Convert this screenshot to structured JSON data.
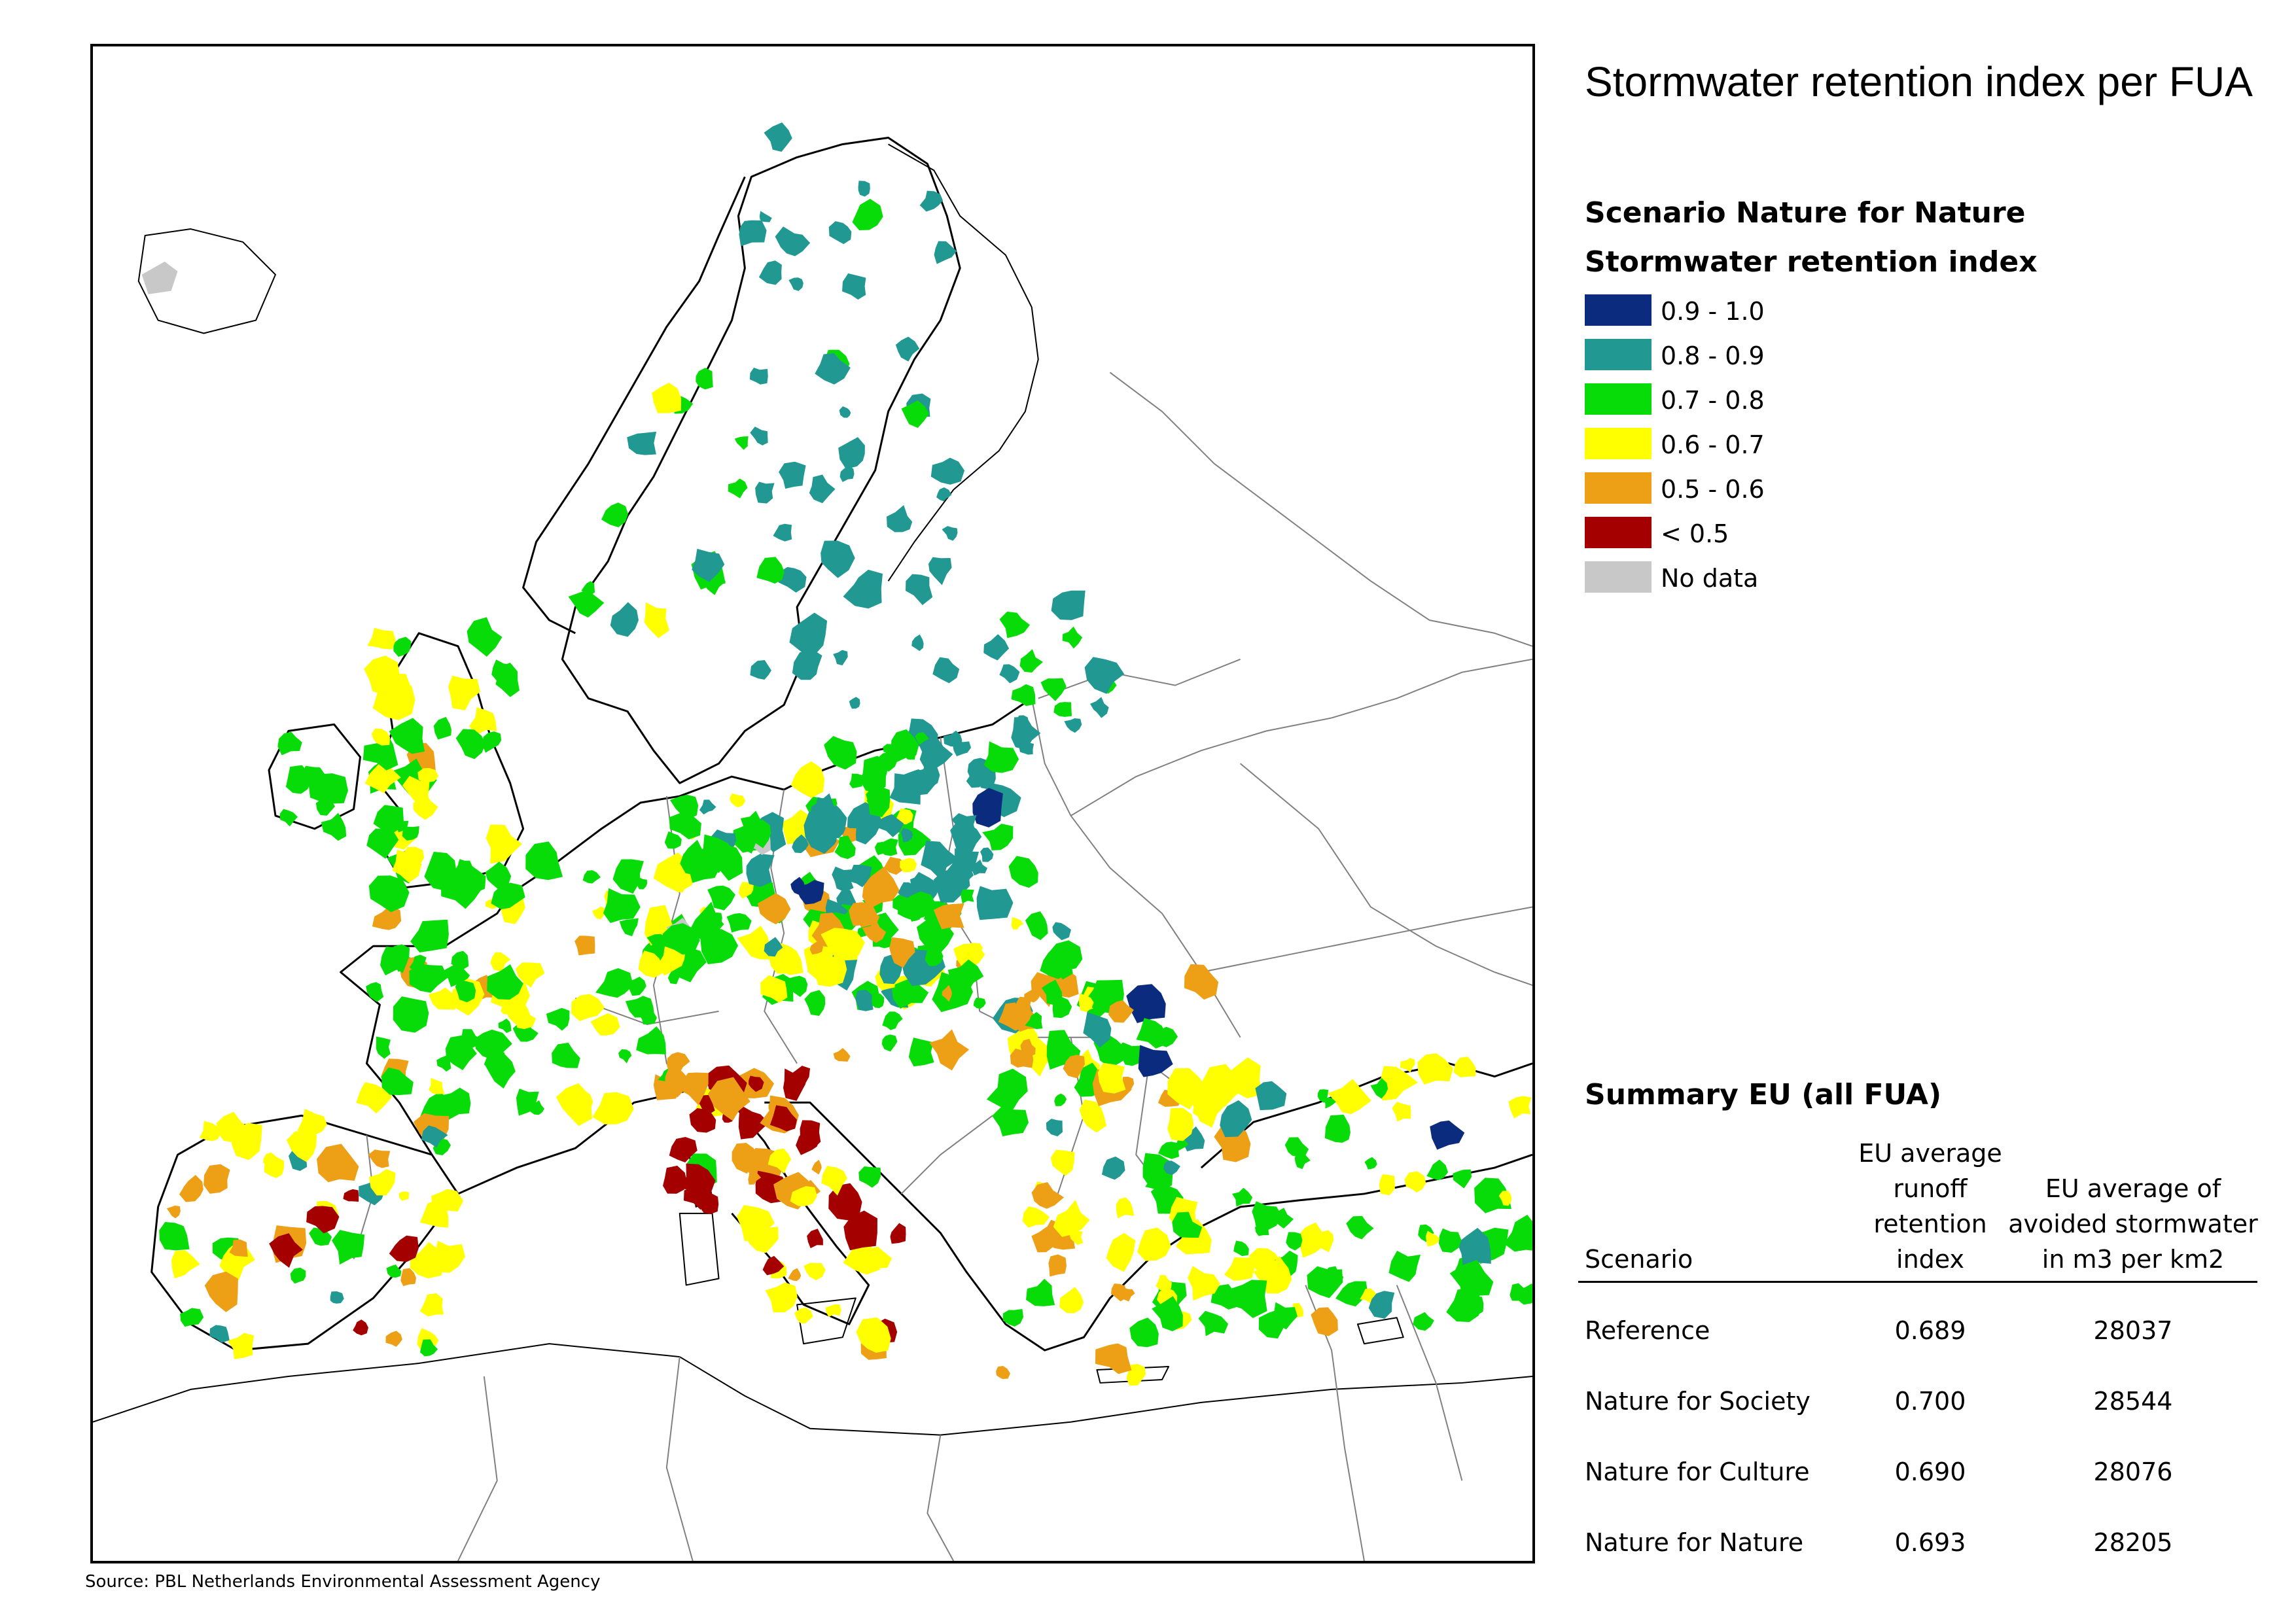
{
  "title": "Stormwater retention index per FUA",
  "scenario_label": "Scenario Nature for Nature",
  "legend_title": "Stormwater retention index",
  "legend": [
    {
      "label": "0.9 - 1.0",
      "color": "#0b2c7e"
    },
    {
      "label": "0.8 - 0.9",
      "color": "#219992"
    },
    {
      "label": "0.7 - 0.8",
      "color": "#08dc08"
    },
    {
      "label": "0.6 - 0.7",
      "color": "#ffff00"
    },
    {
      "label": "0.5 - 0.6",
      "color": "#eda016"
    },
    {
      "label": "< 0.5",
      "color": "#a50000"
    },
    {
      "label": "No data",
      "color": "#c8c8c8"
    }
  ],
  "source": "Source: PBL Netherlands Environmental Assessment Agency",
  "summary": {
    "title": "Summary EU (all FUA)",
    "columns": {
      "scenario": "Scenario",
      "index": [
        "EU average",
        "runoff",
        "retention",
        "index"
      ],
      "avoided": [
        "EU average of",
        "avoided stormwater",
        "in m3 per km2"
      ]
    },
    "rows": [
      {
        "scenario": "Reference",
        "index": "0.689",
        "avoided": "28037"
      },
      {
        "scenario": "Nature for Society",
        "index": "0.700",
        "avoided": "28544"
      },
      {
        "scenario": "Nature for Culture",
        "index": "0.690",
        "avoided": "28076"
      },
      {
        "scenario": "Nature for Nature",
        "index": "0.693",
        "avoided": "28205"
      }
    ]
  },
  "map": {
    "land_color": "#ffffff",
    "border_color": "#808080",
    "coast_color": "#000000"
  }
}
